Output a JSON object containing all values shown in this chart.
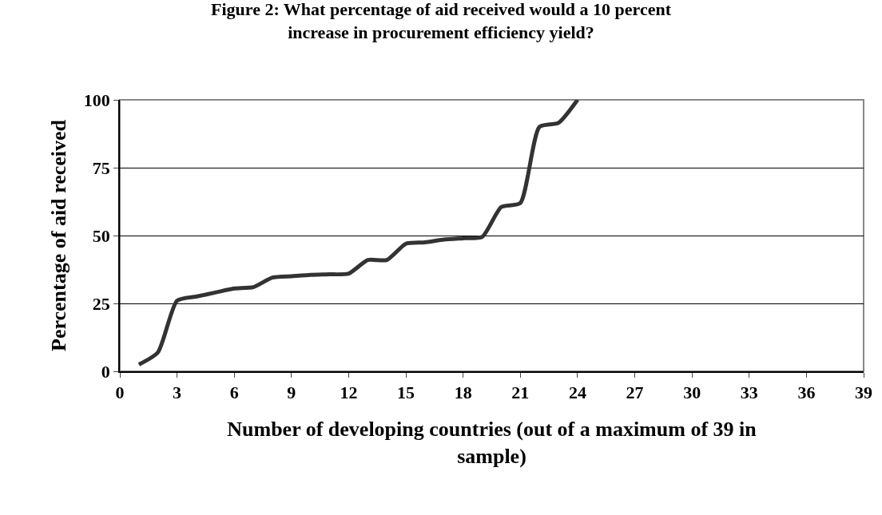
{
  "chart_data": {
    "type": "line",
    "title": "Figure 2: What percentage of aid received would a 10 percent\nincrease in procurement efficiency yield?",
    "xlabel": "Number of developing countries (out of a maximum of 39 in\nsample)",
    "ylabel": "Percentage of aid received",
    "x": [
      1,
      2,
      3,
      4,
      5,
      6,
      7,
      8,
      9,
      10,
      11,
      12,
      13,
      14,
      15,
      16,
      17,
      18,
      19,
      20,
      21,
      22,
      23,
      24
    ],
    "series": [
      {
        "color": "#333333",
        "values": [
          2.5,
          7,
          26,
          27.5,
          29,
          30.5,
          31,
          34.5,
          35,
          35.5,
          35.7,
          36,
          41,
          41,
          47,
          47.5,
          48.5,
          49,
          49.5,
          60.5,
          62,
          90,
          91.5,
          100
        ]
      }
    ],
    "xlim": [
      0,
      39
    ],
    "xticks": [
      0,
      3,
      6,
      9,
      12,
      15,
      18,
      21,
      24,
      27,
      30,
      33,
      36,
      39
    ],
    "ylim": [
      0,
      100
    ],
    "yticks": [
      0,
      25,
      50,
      75,
      100
    ],
    "grid": "y",
    "legend": false,
    "marker": "none",
    "line_style": "solid"
  }
}
